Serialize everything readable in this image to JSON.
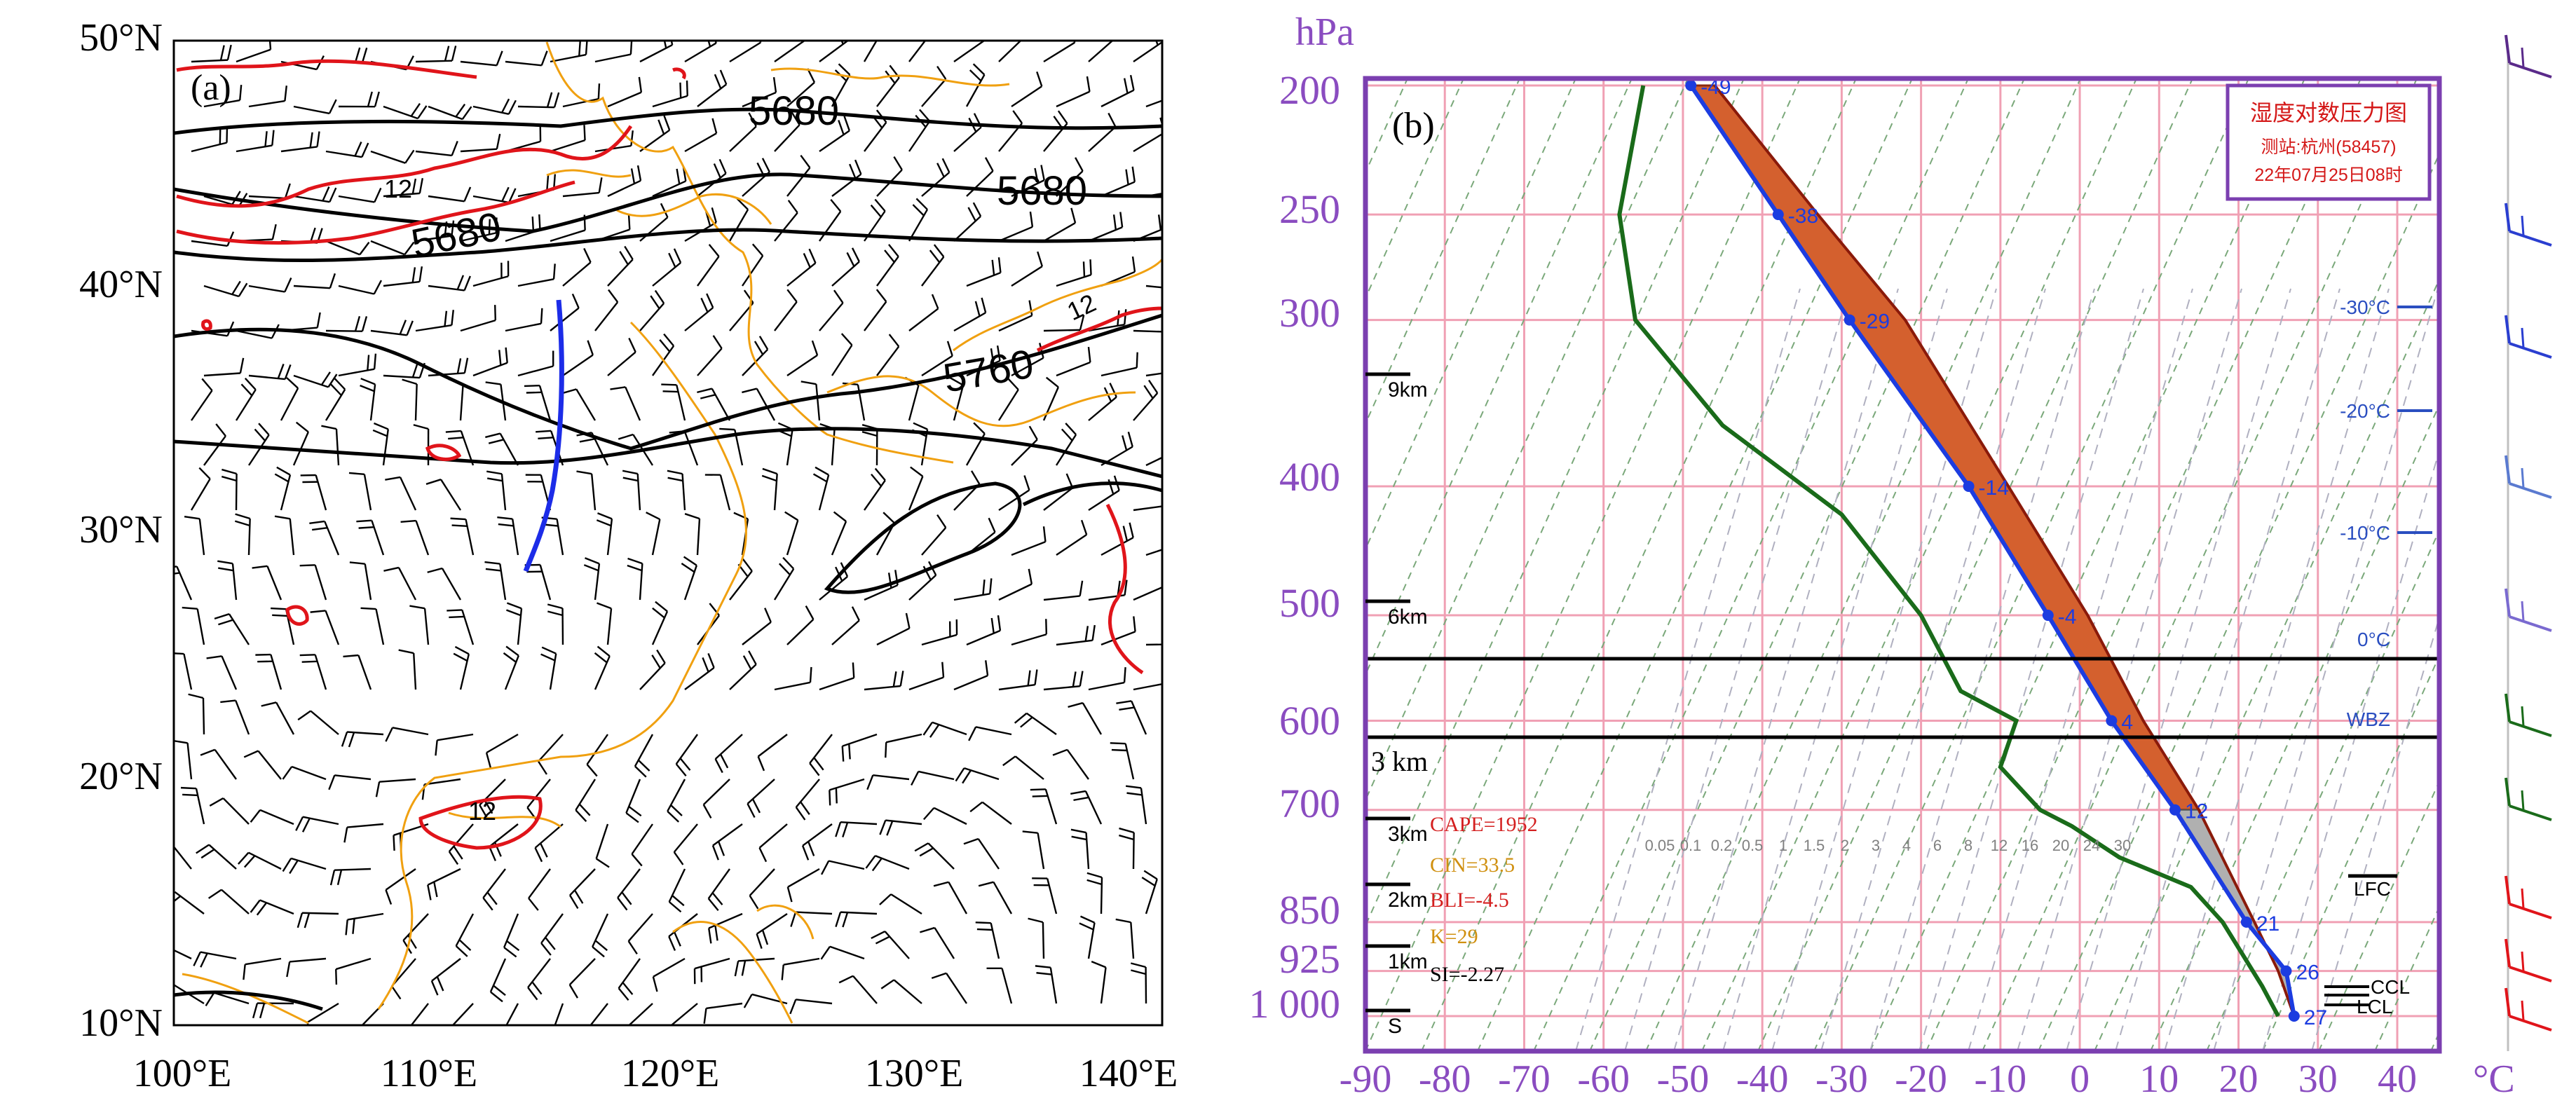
{
  "panel_a": {
    "label": "(a)",
    "lat_labels": [
      "50°N",
      "40°N",
      "30°N",
      "20°N",
      "10°N"
    ],
    "lon_labels": [
      "100°E",
      "110°E",
      "120°E",
      "130°E",
      "140°E"
    ],
    "contour_labels": [
      "5680",
      "5680",
      "5680",
      "5760"
    ],
    "red_labels": [
      "12",
      "12",
      "12"
    ]
  },
  "panel_b": {
    "label": "(b)",
    "unit_p": "hPa",
    "unit_t": "°C",
    "title_box": {
      "line1": "湿度对数压力图",
      "line2": "测站:杭州(58457)",
      "line3": "22年07月25日08时"
    },
    "pressure_labels": [
      "200",
      "250",
      "300",
      "400",
      "500",
      "600",
      "700",
      "850",
      "925",
      "1 000"
    ],
    "temp_labels": [
      "-90",
      "-80",
      "-70",
      "-60",
      "-50",
      "-40",
      "-30",
      "-20",
      "-10",
      "0",
      "10",
      "20",
      "30",
      "40"
    ],
    "km_labels": [
      "9km",
      "6km",
      "3km",
      "2km",
      "1km",
      "S"
    ],
    "line_3km": "3 km",
    "iso_labels": [
      "-30°C",
      "-20°C",
      "-10°C",
      "0°C",
      "WBZ"
    ],
    "level_labels": [
      "LFC",
      "CCL",
      "LCL"
    ],
    "indices": {
      "cape": "CAPE=1952",
      "cin": "CIN=33.5",
      "bli": "BLI=-4.5",
      "k": "K=29",
      "si": "SI=-2.27"
    },
    "point_labels": [
      "-49",
      "-38",
      "-29",
      "-14",
      "-4",
      "4",
      "12",
      "21",
      "26",
      "27"
    ],
    "mixing_labels": [
      "0.05",
      "0.1",
      "0.2",
      "0.5",
      "1",
      "1.5",
      "2",
      "3",
      "4",
      "6",
      "8",
      "12",
      "16",
      "20",
      "24",
      "30"
    ],
    "colors": {
      "frame": "#7b3fb0",
      "temperature": "#1c3ce0",
      "dewpoint": "#1a6b1a",
      "cape_fill": "#d4602e",
      "grid": "#f0a0b4",
      "index_red": "#d42020",
      "index_orange": "#d09010"
    }
  },
  "chart_data": {
    "type": "line",
    "title": "湿度对数压力图",
    "subtitle": "测站:杭州(58457) 22年07月25日08时",
    "xlabel": "°C",
    "ylabel": "hPa",
    "xlim": [
      -90,
      40
    ],
    "ylim": [
      1000,
      200
    ],
    "y_scale": "log",
    "series": [
      {
        "name": "temperature",
        "points": [
          [
            27,
            1000
          ],
          [
            26,
            925
          ],
          [
            21,
            850
          ],
          [
            12,
            700
          ],
          [
            4,
            600
          ],
          [
            -4,
            500
          ],
          [
            -14,
            400
          ],
          [
            -29,
            300
          ],
          [
            -38,
            250
          ],
          [
            -49,
            200
          ]
        ]
      },
      {
        "name": "dewpoint",
        "points": [
          [
            25,
            1000
          ],
          [
            23,
            950
          ],
          [
            18,
            850
          ],
          [
            14,
            800
          ],
          [
            5,
            760
          ],
          [
            -1,
            720
          ],
          [
            -5,
            700
          ],
          [
            -10,
            650
          ],
          [
            -8,
            600
          ],
          [
            -15,
            570
          ],
          [
            -20,
            500
          ],
          [
            -30,
            420
          ],
          [
            -45,
            360
          ],
          [
            -56,
            300
          ],
          [
            -58,
            250
          ],
          [
            -55,
            200
          ]
        ]
      }
    ],
    "indices": {
      "CAPE": 1952,
      "CIN": 33.5,
      "BLI": -4.5,
      "K": 29,
      "SI": -2.27
    }
  }
}
